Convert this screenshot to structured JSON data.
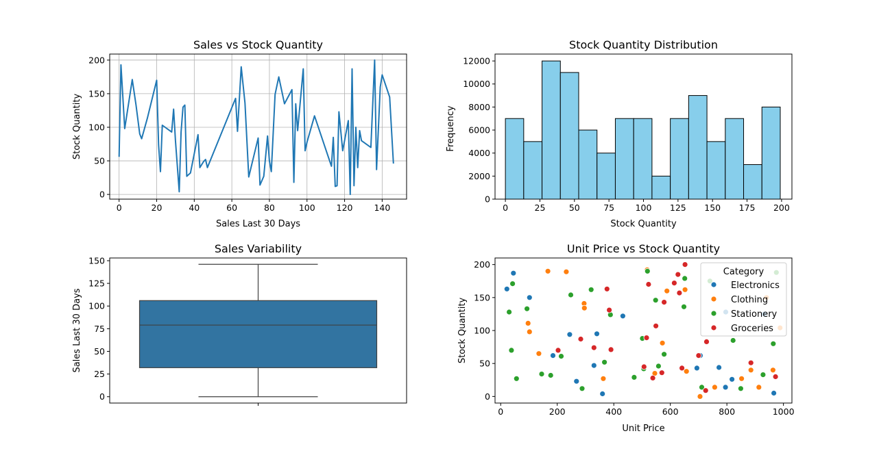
{
  "chart_data": [
    {
      "type": "line",
      "title": "Sales vs Stock Quantity",
      "xlabel": "Sales Last 30 Days",
      "ylabel": "Stock Quantity",
      "xlim": [
        -5,
        153
      ],
      "ylim": [
        -7,
        209
      ],
      "xticks": [
        0,
        20,
        40,
        60,
        80,
        100,
        120,
        140
      ],
      "yticks": [
        0,
        50,
        100,
        150,
        200
      ],
      "grid": true,
      "color": "#1f77b4",
      "series": [
        {
          "x": [
            0,
            1,
            3,
            7,
            9,
            11,
            12,
            15,
            20,
            21,
            22,
            23,
            28,
            29,
            30,
            32,
            33,
            34,
            35,
            36,
            38,
            42,
            43,
            45,
            46,
            47,
            62,
            63,
            65,
            67,
            69,
            74,
            75,
            77,
            79,
            80,
            81,
            83,
            85,
            88,
            92,
            93,
            94,
            95,
            98,
            99,
            100,
            104,
            113,
            114,
            115,
            116,
            117,
            119,
            122,
            123,
            124,
            125,
            126,
            127,
            128,
            129,
            134,
            136,
            137,
            139,
            140,
            144,
            146
          ],
          "y": [
            56,
            193,
            98,
            171,
            133,
            90,
            83,
            113,
            170,
            74,
            34,
            103,
            93,
            127,
            80,
            4,
            93,
            130,
            133,
            27,
            32,
            89,
            40,
            49,
            52,
            40,
            143,
            94,
            190,
            136,
            26,
            84,
            14,
            27,
            87,
            50,
            34,
            149,
            175,
            135,
            156,
            18,
            135,
            95,
            187,
            65,
            78,
            117,
            42,
            85,
            12,
            13,
            123,
            65,
            110,
            0,
            187,
            13,
            100,
            40,
            95,
            80,
            70,
            200,
            37,
            160,
            178,
            145,
            46
          ]
        }
      ]
    },
    {
      "type": "bar",
      "title": "Stock Quantity Distribution",
      "xlabel": "Stock Quantity",
      "ylabel": "Frequency",
      "xlim": [
        -7.5,
        207.5
      ],
      "ylim": [
        0,
        12600
      ],
      "xticks": [
        0,
        25,
        50,
        75,
        100,
        125,
        150,
        175,
        200
      ],
      "yticks": [
        0,
        2000,
        4000,
        6000,
        8000,
        10000,
        12000
      ],
      "bin_start": 0,
      "bin_width": 13.27,
      "values": [
        7000,
        5000,
        12000,
        11000,
        6000,
        4000,
        7000,
        7000,
        2000,
        7000,
        9000,
        5000,
        7000,
        3000,
        8000
      ],
      "color": "#87ceeb"
    },
    {
      "type": "box",
      "title": "Sales Variability",
      "ylabel": "Sales Last 30 Days",
      "ylim": [
        -7,
        153
      ],
      "yticks": [
        0,
        25,
        50,
        75,
        100,
        125,
        150
      ],
      "whisker_low": 0,
      "q1": 32,
      "median": 79,
      "q3": 106,
      "whisker_high": 146,
      "color": "#3274a1"
    },
    {
      "type": "scatter",
      "title": "Unit Price vs Stock Quantity",
      "xlabel": "Unit Price",
      "ylabel": "Stock Quantity",
      "xlim": [
        -20,
        1030
      ],
      "ylim": [
        -10,
        210
      ],
      "xticks": [
        0,
        200,
        400,
        600,
        800,
        1000
      ],
      "yticks": [
        0,
        50,
        100,
        150,
        200
      ],
      "legend_title": "Category",
      "legend_position": "top-right",
      "series": [
        {
          "name": "Electronics",
          "color": "#1f77b4",
          "points": [
            [
              22,
              163
            ],
            [
              45,
              187
            ],
            [
              102,
              150
            ],
            [
              185,
              62
            ],
            [
              244,
              94
            ],
            [
              268,
              23
            ],
            [
              330,
              47
            ],
            [
              340,
              95
            ],
            [
              360,
              4
            ],
            [
              432,
              122
            ],
            [
              694,
              43
            ],
            [
              706,
              62
            ],
            [
              772,
              44
            ],
            [
              795,
              14
            ],
            [
              796,
              128
            ],
            [
              818,
              26
            ],
            [
              932,
              125
            ],
            [
              966,
              5
            ]
          ]
        },
        {
          "name": "Clothing",
          "color": "#ff7f0e",
          "points": [
            [
              97,
              111
            ],
            [
              102,
              98
            ],
            [
              135,
              65
            ],
            [
              167,
              190
            ],
            [
              232,
              189
            ],
            [
              295,
              141
            ],
            [
              296,
              134
            ],
            [
              363,
              27
            ],
            [
              518,
              192
            ],
            [
              545,
              35
            ],
            [
              572,
              81
            ],
            [
              588,
              160
            ],
            [
              652,
              162
            ],
            [
              657,
              38
            ],
            [
              705,
              0
            ],
            [
              757,
              14
            ],
            [
              852,
              27
            ],
            [
              885,
              40
            ],
            [
              913,
              14
            ],
            [
              940,
              150
            ],
            [
              963,
              40
            ],
            [
              988,
              104
            ]
          ]
        },
        {
          "name": "Stationery",
          "color": "#2ca02c",
          "points": [
            [
              30,
              128
            ],
            [
              38,
              70
            ],
            [
              42,
              171
            ],
            [
              56,
              27
            ],
            [
              93,
              133
            ],
            [
              145,
              34
            ],
            [
              177,
              32
            ],
            [
              214,
              61
            ],
            [
              248,
              154
            ],
            [
              288,
              12
            ],
            [
              320,
              162
            ],
            [
              367,
              52
            ],
            [
              388,
              124
            ],
            [
              472,
              29
            ],
            [
              501,
              88
            ],
            [
              506,
              42
            ],
            [
              519,
              190
            ],
            [
              548,
              146
            ],
            [
              558,
              46
            ],
            [
              578,
              64
            ],
            [
              648,
              136
            ],
            [
              651,
              179
            ],
            [
              711,
              14
            ],
            [
              740,
              175
            ],
            [
              822,
              85
            ],
            [
              849,
              12
            ],
            [
              928,
              33
            ],
            [
              964,
              80
            ],
            [
              975,
              188
            ]
          ]
        },
        {
          "name": "Groceries",
          "color": "#d62728",
          "points": [
            [
              203,
              70
            ],
            [
              283,
              87
            ],
            [
              330,
              74
            ],
            [
              376,
              163
            ],
            [
              384,
              131
            ],
            [
              390,
              71
            ],
            [
              507,
              45
            ],
            [
              516,
              89
            ],
            [
              523,
              170
            ],
            [
              538,
              28
            ],
            [
              549,
              107
            ],
            [
              570,
              36
            ],
            [
              578,
              143
            ],
            [
              614,
              172
            ],
            [
              627,
              185
            ],
            [
              632,
              157
            ],
            [
              641,
              43
            ],
            [
              652,
              200
            ],
            [
              700,
              62
            ],
            [
              725,
              9
            ],
            [
              728,
              83
            ],
            [
              885,
              51
            ],
            [
              972,
              30
            ]
          ]
        }
      ]
    }
  ]
}
